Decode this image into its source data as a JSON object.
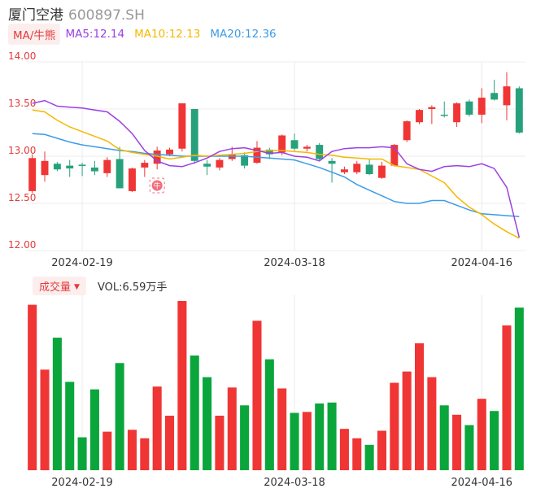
{
  "header": {
    "name": "厦门空港",
    "code": "600897.SH"
  },
  "ma_legend": {
    "button": "MA/牛熊",
    "items": [
      {
        "label": "MA5:12.14",
        "color": "#9b3fe6"
      },
      {
        "label": "MA10:12.13",
        "color": "#f5b800"
      },
      {
        "label": "MA20:12.36",
        "color": "#3d9be8"
      }
    ]
  },
  "volume_legend": {
    "button": "成交量",
    "value": "VOL:6.59万手"
  },
  "colors": {
    "up": "#f03535",
    "down": "#0aa63c",
    "down_candle": "#26a17b",
    "badge": "#f36d7b"
  },
  "badge_label": "牛",
  "chart_data": [
    {
      "type": "candlestick",
      "yticks": [
        "14.00",
        "13.50",
        "13.00",
        "12.50",
        "12.00"
      ],
      "ylim": [
        12.0,
        14.0
      ],
      "xtick_labels": [
        {
          "label": "2024-02-19",
          "index": 4
        },
        {
          "label": "2024-03-18",
          "index": 21
        },
        {
          "label": "2024-04-16",
          "index": 36
        }
      ],
      "candles": [
        {
          "o": 12.63,
          "c": 12.98,
          "h": 13.02,
          "l": 12.61
        },
        {
          "o": 12.8,
          "c": 12.95,
          "h": 13.05,
          "l": 12.73
        },
        {
          "o": 12.92,
          "c": 12.86,
          "h": 12.94,
          "l": 12.84
        },
        {
          "o": 12.9,
          "c": 12.87,
          "h": 12.96,
          "l": 12.78
        },
        {
          "o": 12.91,
          "c": 12.9,
          "h": 12.93,
          "l": 12.79
        },
        {
          "o": 12.88,
          "c": 12.84,
          "h": 12.95,
          "l": 12.8
        },
        {
          "o": 12.82,
          "c": 12.96,
          "h": 12.99,
          "l": 12.78
        },
        {
          "o": 12.97,
          "c": 12.66,
          "h": 13.1,
          "l": 12.66
        },
        {
          "o": 12.63,
          "c": 12.87,
          "h": 12.88,
          "l": 12.62
        },
        {
          "o": 12.88,
          "c": 12.93,
          "h": 12.96,
          "l": 12.78
        },
        {
          "o": 12.92,
          "c": 13.06,
          "h": 13.1,
          "l": 12.86
        },
        {
          "o": 13.02,
          "c": 13.07,
          "h": 13.09,
          "l": 13.0
        },
        {
          "o": 13.08,
          "c": 13.56,
          "h": 13.56,
          "l": 13.05
        },
        {
          "o": 13.5,
          "c": 12.95,
          "h": 13.5,
          "l": 12.92
        },
        {
          "o": 12.92,
          "c": 12.89,
          "h": 12.96,
          "l": 12.8
        },
        {
          "o": 12.88,
          "c": 12.96,
          "h": 12.98,
          "l": 12.85
        },
        {
          "o": 12.97,
          "c": 13.02,
          "h": 13.1,
          "l": 12.95
        },
        {
          "o": 13.01,
          "c": 12.9,
          "h": 13.04,
          "l": 12.87
        },
        {
          "o": 12.93,
          "c": 13.09,
          "h": 13.16,
          "l": 12.92
        },
        {
          "o": 13.07,
          "c": 13.02,
          "h": 13.09,
          "l": 12.97
        },
        {
          "o": 13.04,
          "c": 13.22,
          "h": 13.23,
          "l": 13.01
        },
        {
          "o": 13.17,
          "c": 13.08,
          "h": 13.24,
          "l": 13.06
        },
        {
          "o": 13.08,
          "c": 13.1,
          "h": 13.12,
          "l": 13.05
        },
        {
          "o": 13.12,
          "c": 12.97,
          "h": 13.14,
          "l": 12.95
        },
        {
          "o": 12.95,
          "c": 12.92,
          "h": 12.98,
          "l": 12.72
        },
        {
          "o": 12.83,
          "c": 12.86,
          "h": 12.89,
          "l": 12.81
        },
        {
          "o": 12.83,
          "c": 12.92,
          "h": 12.95,
          "l": 12.81
        },
        {
          "o": 12.91,
          "c": 12.81,
          "h": 12.97,
          "l": 12.8
        },
        {
          "o": 12.77,
          "c": 12.9,
          "h": 12.94,
          "l": 12.76
        },
        {
          "o": 12.9,
          "c": 13.12,
          "h": 13.13,
          "l": 12.89
        },
        {
          "o": 13.17,
          "c": 13.37,
          "h": 13.38,
          "l": 13.15
        },
        {
          "o": 13.36,
          "c": 13.49,
          "h": 13.5,
          "l": 13.34
        },
        {
          "o": 13.5,
          "c": 13.52,
          "h": 13.54,
          "l": 13.34
        },
        {
          "o": 13.44,
          "c": 13.43,
          "h": 13.58,
          "l": 13.41
        },
        {
          "o": 13.36,
          "c": 13.56,
          "h": 13.57,
          "l": 13.31
        },
        {
          "o": 13.58,
          "c": 13.44,
          "h": 13.6,
          "l": 13.42
        },
        {
          "o": 13.44,
          "c": 13.62,
          "h": 13.72,
          "l": 13.35
        },
        {
          "o": 13.67,
          "c": 13.6,
          "h": 13.81,
          "l": 13.59
        },
        {
          "o": 13.54,
          "c": 13.74,
          "h": 13.89,
          "l": 13.38
        },
        {
          "o": 13.72,
          "c": 13.25,
          "h": 13.74,
          "l": 13.24
        }
      ],
      "ma5": [
        13.56,
        13.59,
        13.53,
        13.52,
        13.51,
        13.49,
        13.47,
        13.37,
        13.24,
        13.06,
        12.95,
        12.9,
        12.89,
        12.93,
        12.98,
        13.05,
        13.08,
        13.09,
        13.06,
        13.03,
        13.04,
        13.0,
        12.99,
        12.95,
        13.05,
        13.08,
        13.09,
        13.09,
        13.1,
        13.09,
        12.92,
        12.86,
        12.84,
        12.89,
        12.9,
        12.89,
        12.92,
        12.87,
        12.67,
        12.14
      ],
      "ma10": [
        13.49,
        13.47,
        13.38,
        13.31,
        13.26,
        13.21,
        13.16,
        13.07,
        13.04,
        13.02,
        13.0,
        12.97,
        12.99,
        13.01,
        13.0,
        13.01,
        13.02,
        13.03,
        13.05,
        13.06,
        13.06,
        13.05,
        13.04,
        13.02,
        13.01,
        12.99,
        12.98,
        12.97,
        12.97,
        12.9,
        12.88,
        12.86,
        12.79,
        12.72,
        12.57,
        12.46,
        12.38,
        12.28,
        12.2,
        12.13
      ],
      "ma20": [
        13.24,
        13.23,
        13.19,
        13.15,
        13.12,
        13.1,
        13.08,
        13.06,
        13.05,
        13.03,
        13.02,
        13.01,
        13.0,
        13.0,
        13.0,
        13.0,
        13.0,
        13.0,
        12.99,
        12.98,
        12.97,
        12.96,
        12.92,
        12.88,
        12.83,
        12.78,
        12.7,
        12.64,
        12.58,
        12.52,
        12.5,
        12.5,
        12.53,
        12.53,
        12.48,
        12.43,
        12.39,
        12.38,
        12.37,
        12.36
      ]
    },
    {
      "type": "bar",
      "name": "volume",
      "values": [
        17.6,
        10.7,
        14.1,
        9.4,
        3.5,
        8.6,
        4.1,
        11.4,
        4.3,
        3.4,
        8.9,
        5.8,
        18.0,
        12.2,
        9.9,
        5.8,
        8.8,
        6.9,
        15.9,
        11.8,
        8.7,
        6.1,
        6.2,
        7.1,
        7.2,
        4.4,
        3.4,
        2.7,
        4.2,
        9.3,
        10.5,
        13.5,
        9.9,
        6.9,
        5.9,
        4.8,
        7.6,
        6.3,
        15.4,
        17.3
      ]
    }
  ]
}
